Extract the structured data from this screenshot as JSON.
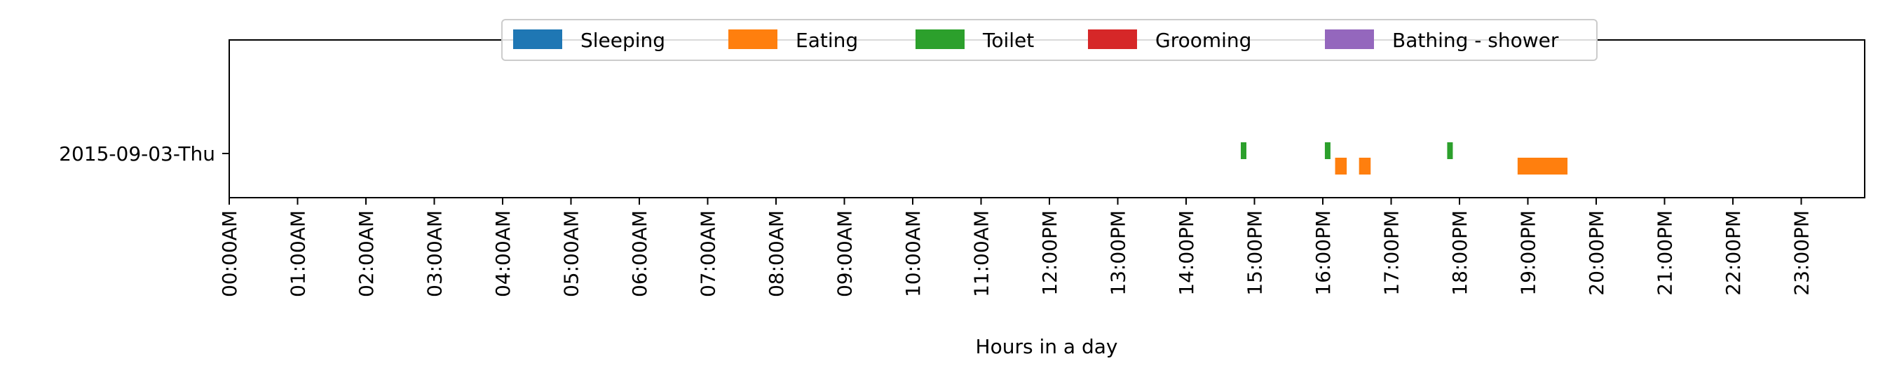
{
  "chart_data": {
    "type": "timeline",
    "title": "",
    "xlabel": "Hours in a day",
    "ylabel": "",
    "xlim": [
      0,
      24
    ],
    "x_ticks": [
      {
        "value": 0,
        "label": "00:00AM"
      },
      {
        "value": 1,
        "label": "01:00AM"
      },
      {
        "value": 2,
        "label": "02:00AM"
      },
      {
        "value": 3,
        "label": "03:00AM"
      },
      {
        "value": 4,
        "label": "04:00AM"
      },
      {
        "value": 5,
        "label": "05:00AM"
      },
      {
        "value": 6,
        "label": "06:00AM"
      },
      {
        "value": 7,
        "label": "07:00AM"
      },
      {
        "value": 8,
        "label": "08:00AM"
      },
      {
        "value": 9,
        "label": "09:00AM"
      },
      {
        "value": 10,
        "label": "10:00AM"
      },
      {
        "value": 11,
        "label": "11:00AM"
      },
      {
        "value": 12,
        "label": "12:00PM"
      },
      {
        "value": 13,
        "label": "13:00PM"
      },
      {
        "value": 14,
        "label": "14:00PM"
      },
      {
        "value": 15,
        "label": "15:00PM"
      },
      {
        "value": 16,
        "label": "16:00PM"
      },
      {
        "value": 17,
        "label": "17:00PM"
      },
      {
        "value": 18,
        "label": "18:00PM"
      },
      {
        "value": 19,
        "label": "19:00PM"
      },
      {
        "value": 20,
        "label": "20:00PM"
      },
      {
        "value": 21,
        "label": "21:00PM"
      },
      {
        "value": 22,
        "label": "22:00PM"
      },
      {
        "value": 23,
        "label": "23:00PM"
      }
    ],
    "categories": [
      "2015-09-03-Thu"
    ],
    "legend_position": "top-center",
    "grid": false,
    "legend": [
      {
        "name": "Sleeping",
        "color": "#1f77b4"
      },
      {
        "name": "Eating",
        "color": "#ff7f0e"
      },
      {
        "name": "Toilet",
        "color": "#2ca02c"
      },
      {
        "name": "Grooming",
        "color": "#d62728"
      },
      {
        "name": "Bathing - shower",
        "color": "#9467bd"
      }
    ],
    "events": [
      {
        "category": "2015-09-03-Thu",
        "activity": "Toilet",
        "start": 14.8,
        "end": 14.87
      },
      {
        "category": "2015-09-03-Thu",
        "activity": "Toilet",
        "start": 16.03,
        "end": 16.1
      },
      {
        "category": "2015-09-03-Thu",
        "activity": "Eating",
        "start": 16.18,
        "end": 16.35
      },
      {
        "category": "2015-09-03-Thu",
        "activity": "Eating",
        "start": 16.53,
        "end": 16.7
      },
      {
        "category": "2015-09-03-Thu",
        "activity": "Toilet",
        "start": 17.82,
        "end": 17.9
      },
      {
        "category": "2015-09-03-Thu",
        "activity": "Eating",
        "start": 18.85,
        "end": 19.58
      }
    ]
  }
}
